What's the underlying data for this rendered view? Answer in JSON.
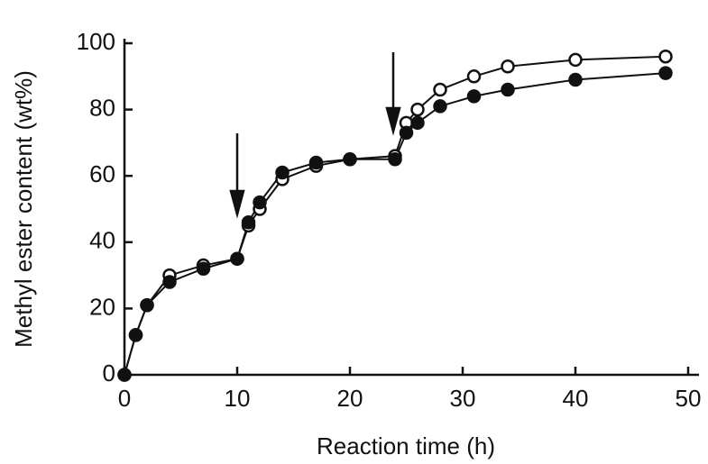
{
  "chart_data": {
    "type": "line",
    "x_label": "Reaction time (h)",
    "y_label": "Methyl ester content (wt%)",
    "x": [
      0,
      1,
      2,
      4,
      7,
      10,
      11,
      12,
      14,
      17,
      20,
      24,
      25,
      26,
      28,
      31,
      34,
      40,
      48
    ],
    "series": [
      {
        "color": "#111111",
        "marker": "open",
        "values": [
          0,
          12,
          21,
          30,
          33,
          35,
          45,
          50,
          59,
          63,
          65,
          66,
          76,
          80,
          86,
          90,
          93,
          95,
          96
        ]
      },
      {
        "color": "#111111",
        "marker": "filled",
        "values": [
          0,
          12,
          21,
          28,
          32,
          35,
          46,
          52,
          61,
          64,
          65,
          65,
          73,
          76,
          81,
          84,
          86,
          89,
          91
        ]
      }
    ],
    "xlim": [
      0,
      50
    ],
    "xticks": [
      0,
      10,
      20,
      30,
      40,
      50
    ],
    "ylim": [
      0,
      100
    ],
    "yticks": [
      0,
      20,
      40,
      60,
      80,
      100
    ]
  }
}
